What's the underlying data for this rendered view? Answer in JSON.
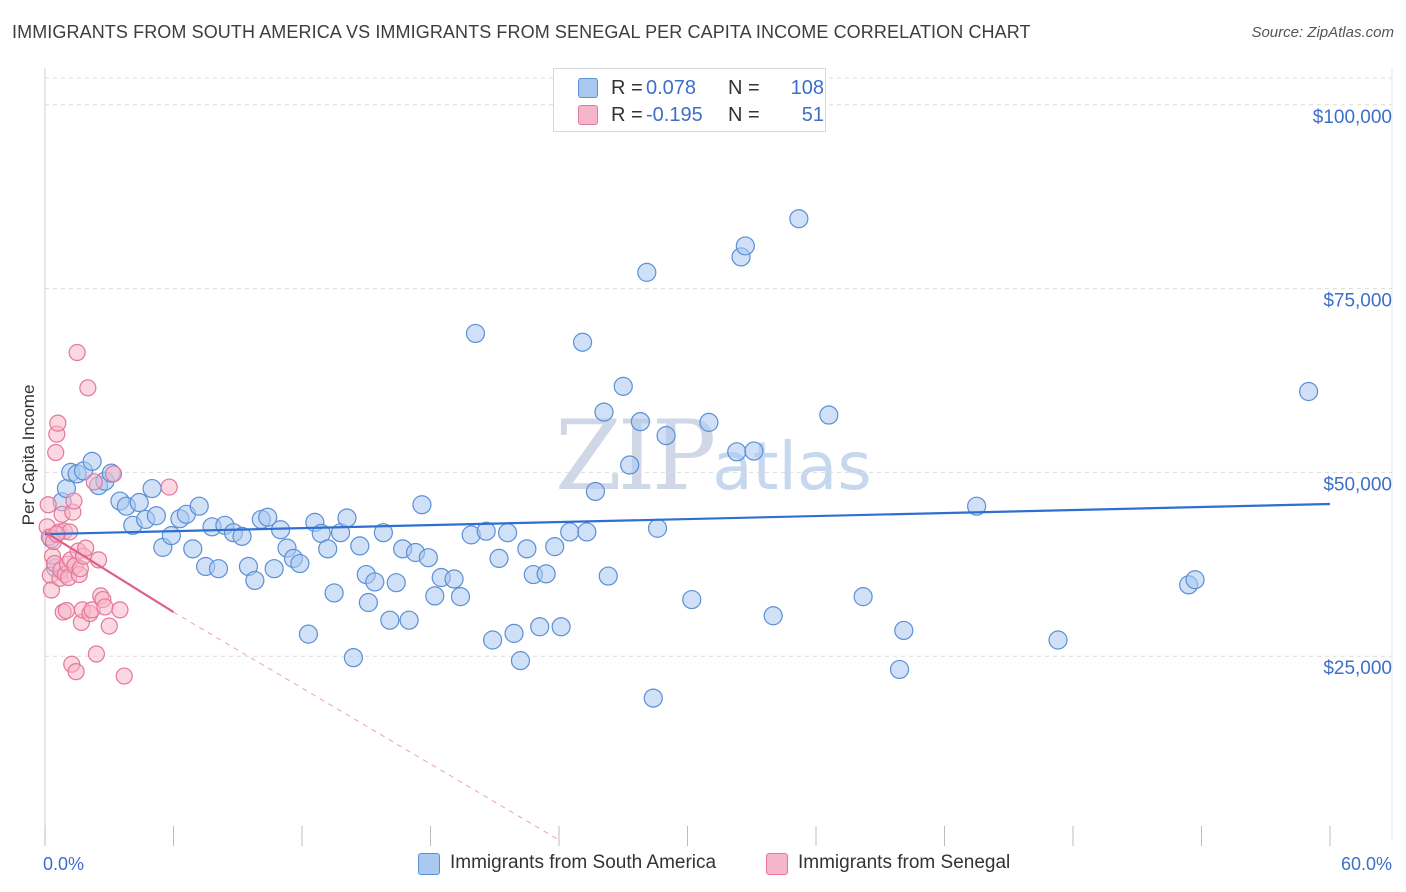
{
  "title": "IMMIGRANTS FROM SOUTH AMERICA VS IMMIGRANTS FROM SENEGAL PER CAPITA INCOME CORRELATION CHART",
  "source": "Source: ZipAtlas.com",
  "watermark": {
    "zip": "ZIP",
    "atlas": "atlas"
  },
  "legend": {
    "rows": [
      {
        "r_label": "R =",
        "r_value": "0.078",
        "n_label": "N =",
        "n_value": "108"
      },
      {
        "r_label": "R =",
        "r_value": "-0.195",
        "n_label": "N =",
        "n_value": "51"
      }
    ]
  },
  "bottom_legend": [
    "Immigrants from South America",
    "Immigrants from Senegal"
  ],
  "colors": {
    "blue_fill": "#a9c8f0",
    "blue_stroke": "#5b8fd6",
    "blue_line": "#2f6fcf",
    "pink_fill": "#f6b6c9",
    "pink_stroke": "#e6769a",
    "pink_line": "#e0608c",
    "tick_text": "#3d6fc9",
    "grid": "#dcdcdc"
  },
  "chart_data": {
    "type": "scatter",
    "title": "IMMIGRANTS FROM SOUTH AMERICA VS IMMIGRANTS FROM SENEGAL PER CAPITA INCOME CORRELATION CHART",
    "xlabel": "",
    "ylabel": "Per Capita Income",
    "xlim": [
      0,
      60
    ],
    "ylim": [
      0,
      105000
    ],
    "x_tick_labels": [
      "0.0%",
      "60.0%"
    ],
    "y_ticks": [
      25000,
      50000,
      75000,
      100000
    ],
    "y_tick_labels": [
      "$25,000",
      "$50,000",
      "$75,000",
      "$100,000"
    ],
    "grid": true,
    "legend_position": "top-center",
    "series": [
      {
        "name": "Immigrants from South America",
        "R": 0.078,
        "N": 108,
        "trend": {
          "x": [
            0,
            60
          ],
          "y": [
            41600,
            45700
          ],
          "style": "solid"
        },
        "points": [
          [
            0.3,
            41000
          ],
          [
            0.5,
            37000
          ],
          [
            0.8,
            46000
          ],
          [
            1.0,
            47800
          ],
          [
            1.2,
            50000
          ],
          [
            1.5,
            49800
          ],
          [
            1.8,
            50200
          ],
          [
            2.2,
            51500
          ],
          [
            2.5,
            48200
          ],
          [
            2.8,
            48800
          ],
          [
            3.1,
            49900
          ],
          [
            3.5,
            46100
          ],
          [
            3.8,
            45400
          ],
          [
            4.1,
            42800
          ],
          [
            4.4,
            45900
          ],
          [
            4.7,
            43600
          ],
          [
            5.0,
            47800
          ],
          [
            5.2,
            44100
          ],
          [
            5.5,
            39800
          ],
          [
            5.9,
            41400
          ],
          [
            6.3,
            43700
          ],
          [
            6.6,
            44300
          ],
          [
            6.9,
            39600
          ],
          [
            7.2,
            45400
          ],
          [
            7.5,
            37200
          ],
          [
            7.8,
            42600
          ],
          [
            8.1,
            36900
          ],
          [
            8.4,
            42800
          ],
          [
            8.8,
            41800
          ],
          [
            9.2,
            41300
          ],
          [
            9.5,
            37200
          ],
          [
            9.8,
            35300
          ],
          [
            10.1,
            43600
          ],
          [
            10.4,
            43900
          ],
          [
            10.7,
            36900
          ],
          [
            11.0,
            42200
          ],
          [
            11.3,
            39700
          ],
          [
            11.6,
            38300
          ],
          [
            11.9,
            37600
          ],
          [
            12.3,
            28000
          ],
          [
            12.6,
            43200
          ],
          [
            12.9,
            41700
          ],
          [
            13.2,
            39600
          ],
          [
            13.5,
            33600
          ],
          [
            13.8,
            41800
          ],
          [
            14.1,
            43800
          ],
          [
            14.4,
            24800
          ],
          [
            14.7,
            40000
          ],
          [
            15.0,
            36100
          ],
          [
            15.1,
            32300
          ],
          [
            15.4,
            35100
          ],
          [
            15.8,
            41800
          ],
          [
            16.1,
            29900
          ],
          [
            16.4,
            35000
          ],
          [
            16.7,
            39600
          ],
          [
            17.0,
            29900
          ],
          [
            17.3,
            39100
          ],
          [
            17.6,
            45600
          ],
          [
            17.9,
            38400
          ],
          [
            18.2,
            33200
          ],
          [
            18.5,
            35700
          ],
          [
            19.1,
            35500
          ],
          [
            19.4,
            33100
          ],
          [
            19.9,
            41500
          ],
          [
            20.1,
            68900
          ],
          [
            20.6,
            42000
          ],
          [
            20.9,
            27200
          ],
          [
            21.2,
            38300
          ],
          [
            21.6,
            41800
          ],
          [
            21.9,
            28100
          ],
          [
            22.2,
            24400
          ],
          [
            22.5,
            39600
          ],
          [
            22.8,
            36100
          ],
          [
            23.1,
            29000
          ],
          [
            23.4,
            36200
          ],
          [
            23.8,
            39900
          ],
          [
            24.1,
            29000
          ],
          [
            24.5,
            41900
          ],
          [
            25.1,
            67700
          ],
          [
            25.3,
            41900
          ],
          [
            25.7,
            47400
          ],
          [
            26.1,
            58200
          ],
          [
            26.3,
            35900
          ],
          [
            27.0,
            61700
          ],
          [
            27.3,
            51000
          ],
          [
            27.8,
            56900
          ],
          [
            28.1,
            77200
          ],
          [
            28.4,
            19300
          ],
          [
            28.6,
            42400
          ],
          [
            29.0,
            55000
          ],
          [
            30.2,
            32700
          ],
          [
            31.0,
            56800
          ],
          [
            32.3,
            52800
          ],
          [
            32.5,
            79300
          ],
          [
            32.7,
            80800
          ],
          [
            33.1,
            52900
          ],
          [
            34.0,
            30500
          ],
          [
            35.2,
            84500
          ],
          [
            36.6,
            57800
          ],
          [
            38.2,
            33100
          ],
          [
            39.9,
            23200
          ],
          [
            40.1,
            28500
          ],
          [
            43.5,
            45400
          ],
          [
            47.3,
            27200
          ],
          [
            53.4,
            34700
          ],
          [
            53.7,
            35400
          ],
          [
            59.0,
            61000
          ]
        ]
      },
      {
        "name": "Immigrants from Senegal",
        "R": -0.195,
        "N": 51,
        "trend": {
          "x": [
            0,
            6
          ],
          "y": [
            41900,
            31000
          ],
          "style": "solid",
          "extended_dashed_to": {
            "x": 24,
            "y": 0
          }
        },
        "points": [
          [
            0.1,
            42600
          ],
          [
            0.15,
            45600
          ],
          [
            0.2,
            41200
          ],
          [
            0.25,
            36000
          ],
          [
            0.3,
            34000
          ],
          [
            0.35,
            38600
          ],
          [
            0.4,
            40600
          ],
          [
            0.45,
            37600
          ],
          [
            0.5,
            52700
          ],
          [
            0.55,
            55200
          ],
          [
            0.6,
            56700
          ],
          [
            0.65,
            41900
          ],
          [
            0.7,
            35600
          ],
          [
            0.75,
            36700
          ],
          [
            0.8,
            44300
          ],
          [
            0.85,
            31000
          ],
          [
            0.9,
            42000
          ],
          [
            0.95,
            36100
          ],
          [
            1.0,
            31200
          ],
          [
            1.05,
            37500
          ],
          [
            1.1,
            35700
          ],
          [
            1.15,
            41900
          ],
          [
            1.2,
            38100
          ],
          [
            1.25,
            23900
          ],
          [
            1.3,
            44600
          ],
          [
            1.35,
            46100
          ],
          [
            1.4,
            37300
          ],
          [
            1.45,
            22900
          ],
          [
            1.5,
            66300
          ],
          [
            1.55,
            39300
          ],
          [
            1.6,
            36100
          ],
          [
            1.65,
            36900
          ],
          [
            1.7,
            29600
          ],
          [
            1.75,
            31300
          ],
          [
            1.8,
            38600
          ],
          [
            1.9,
            39700
          ],
          [
            2.0,
            61500
          ],
          [
            2.1,
            30800
          ],
          [
            2.2,
            31300
          ],
          [
            2.3,
            48700
          ],
          [
            2.4,
            25300
          ],
          [
            2.5,
            38100
          ],
          [
            2.6,
            33200
          ],
          [
            2.7,
            32700
          ],
          [
            2.8,
            31700
          ],
          [
            3.0,
            29100
          ],
          [
            3.2,
            49800
          ],
          [
            3.5,
            31300
          ],
          [
            3.7,
            22300
          ],
          [
            5.8,
            48000
          ],
          [
            0.55,
            41600
          ]
        ]
      }
    ]
  }
}
